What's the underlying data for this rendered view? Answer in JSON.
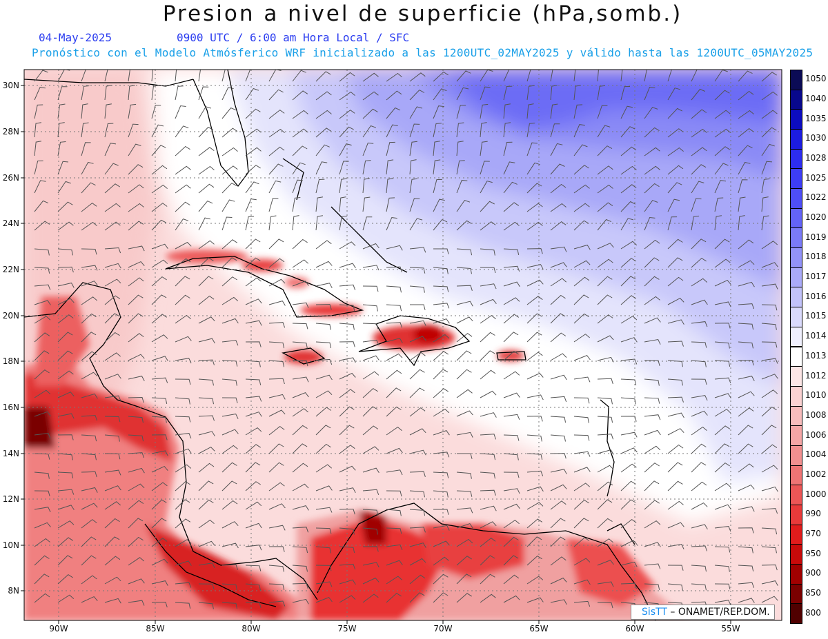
{
  "title": "Presion a nivel de superficie (hPa,somb.)",
  "date": "04-May-2025",
  "time_info": "0900 UTC / 6:00 am Hora Local / SFC",
  "forecast_info": "Pronóstico con el Modelo Atmósferico WRF inicializado a las 1200UTC_02MAY2025 y válido hasta las  1200UTC_05MAY2025",
  "credit_brand": "SisTT",
  "credit_text": "– ONAMET/REP.DOM.",
  "lat_labels": [
    "30N",
    "28N",
    "26N",
    "24N",
    "22N",
    "20N",
    "18N",
    "16N",
    "14N",
    "12N",
    "10N",
    "8N"
  ],
  "lon_labels": [
    "90W",
    "85W",
    "80W",
    "75W",
    "70W",
    "65W",
    "60W",
    "55W"
  ],
  "legend": {
    "levels": [
      "1050",
      "1040",
      "1035",
      "1030",
      "1028",
      "1025",
      "1022",
      "1020",
      "1019",
      "1018",
      "1017",
      "1016",
      "1015",
      "1014",
      "1013",
      "1012",
      "1010",
      "1008",
      "1006",
      "1004",
      "1002",
      "1000",
      "990",
      "970",
      "950",
      "900",
      "850",
      "800"
    ],
    "colors": [
      "#0b0b55",
      "#08088c",
      "#0c0cc0",
      "#1c1ce0",
      "#2d2df0",
      "#3d3df5",
      "#4e4ef6",
      "#6363f7",
      "#7a7af7",
      "#9292f8",
      "#aaaaf9",
      "#c2c2fa",
      "#dadafc",
      "#f0f0fe",
      "#ffffff",
      "#fde6e6",
      "#fbd2d2",
      "#f8bcbc",
      "#f5a6a6",
      "#f29090",
      "#ef7474",
      "#ec5656",
      "#e83a3a",
      "#e01c1c",
      "#c80a0a",
      "#a00000",
      "#7a0000",
      "#500000"
    ]
  }
}
